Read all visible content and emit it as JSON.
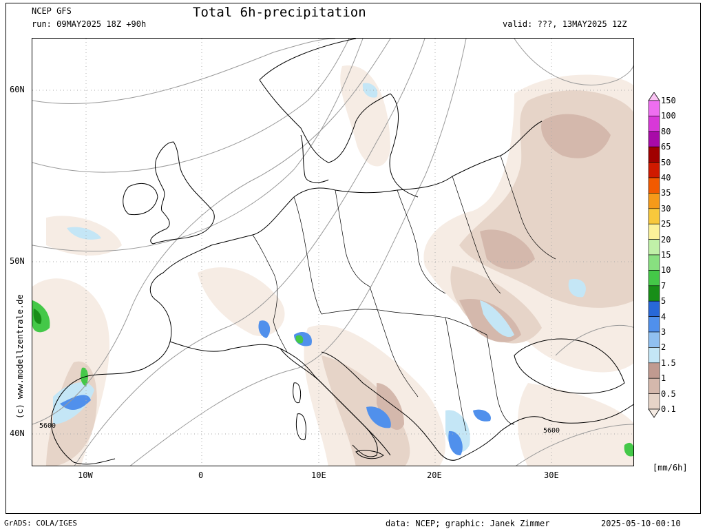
{
  "header": {
    "model": "NCEP GFS",
    "run": "run: 09MAY2025 18Z +90h",
    "title": "Total 6h-precipitation",
    "valid": "valid: ???, 13MAY2025 12Z"
  },
  "footer": {
    "left": "GrADS: COLA/IGES",
    "center": "data: NCEP; graphic: Janek Zimmer",
    "right": "2025-05-10-00:10"
  },
  "watermark": "(c) www.modellzentrale.de",
  "axes": {
    "lat_labels": [
      "60N",
      "50N",
      "40N"
    ],
    "lon_labels": [
      "10W",
      "0",
      "10E",
      "20E",
      "30E"
    ]
  },
  "contour_labels": [
    "5600",
    "5600"
  ],
  "colorbar": {
    "unit": "[mm/6h]",
    "levels": [
      "150",
      "100",
      "80",
      "65",
      "50",
      "40",
      "35",
      "30",
      "25",
      "20",
      "15",
      "10",
      "7",
      "5",
      "4",
      "3",
      "2",
      "1.5",
      "1",
      "0.5",
      "0.1"
    ],
    "colors": [
      "#fbc4f4",
      "#ee6ef0",
      "#d838d8",
      "#a80aa8",
      "#a00000",
      "#d01a00",
      "#f25a00",
      "#f69a19",
      "#f8c83c",
      "#fcf29a",
      "#c0f0a8",
      "#88e080",
      "#44c848",
      "#188e18",
      "#2868d8",
      "#5090ec",
      "#90c0f0",
      "#c4e6f6",
      "#c09a90",
      "#d4b8ac",
      "#e6d4c8",
      "#f6ece4"
    ]
  }
}
